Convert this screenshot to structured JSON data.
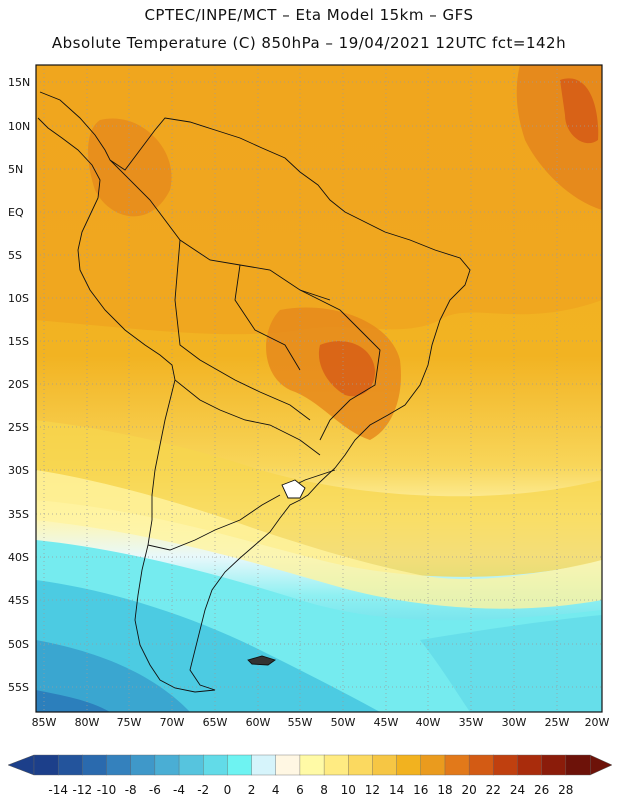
{
  "header": {
    "line1": "CPTEC/INPE/MCT –  Eta Model 15km – GFS",
    "line2": "Absolute Temperature (C) 850hPa – 19/04/2021 12UTC fct=142h"
  },
  "map": {
    "lat_labels": [
      "15N",
      "10N",
      "5N",
      "EQ",
      "5S",
      "10S",
      "15S",
      "20S",
      "25S",
      "30S",
      "35S",
      "40S",
      "45S",
      "50S",
      "55S"
    ],
    "lon_labels": [
      "85W",
      "80W",
      "75W",
      "70W",
      "65W",
      "60W",
      "55W",
      "50W",
      "45W",
      "40W",
      "35W",
      "30W",
      "25W",
      "20W"
    ]
  },
  "colorbar": {
    "labels": [
      "-14",
      "-12",
      "-10",
      "-8",
      "-6",
      "-4",
      "-2",
      "0",
      "2",
      "4",
      "6",
      "8",
      "10",
      "12",
      "14",
      "16",
      "18",
      "20",
      "22",
      "24",
      "26",
      "28"
    ],
    "colors": [
      "#1c3f8a",
      "#23549c",
      "#2a6aae",
      "#3481bd",
      "#3f98c9",
      "#4aaed4",
      "#56c4de",
      "#62dbe8",
      "#6ef3f2",
      "#d6f4fb",
      "#fff7e3",
      "#fffaa6",
      "#ffeb82",
      "#fbd960",
      "#f6c644",
      "#f2b21f",
      "#ea9b1e",
      "#e2791a",
      "#d35b14",
      "#c0400f",
      "#a92c0c",
      "#8b1c0a",
      "#6d1209"
    ]
  }
}
